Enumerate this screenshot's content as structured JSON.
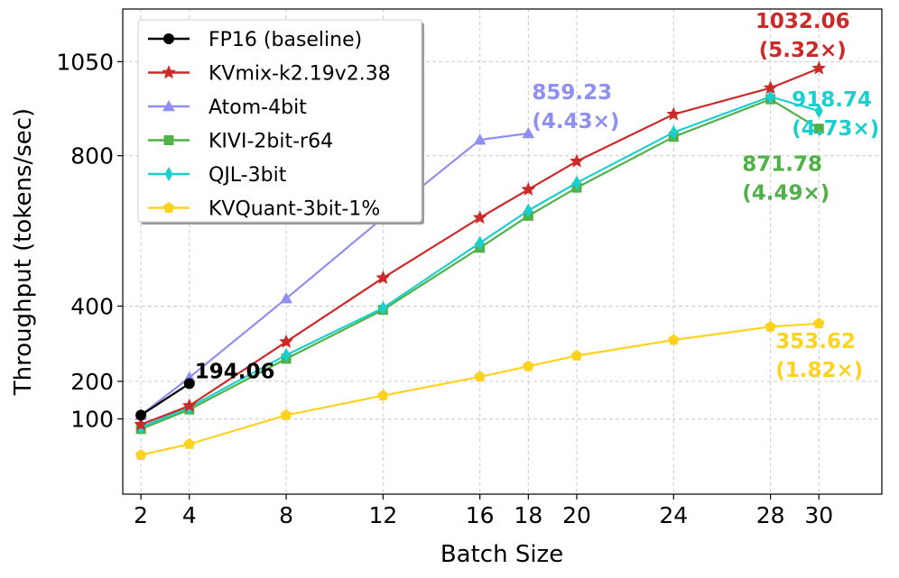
{
  "chart_data": {
    "type": "line",
    "xlabel": "Batch Size",
    "ylabel": "Throughput (tokens/sec)",
    "xlim": [
      1.25,
      32.6
    ],
    "ylim": [
      -100,
      1190
    ],
    "x_ticks": [
      2,
      4,
      8,
      12,
      16,
      18,
      20,
      24,
      28,
      30
    ],
    "y_ticks": [
      100,
      200,
      400,
      800,
      1050
    ],
    "grid": true,
    "legend_position": "top-left",
    "series": [
      {
        "name": "FP16 (baseline)",
        "color": "#000000",
        "marker": "circle",
        "x": [
          2,
          4
        ],
        "y": [
          110,
          194.06
        ]
      },
      {
        "name": "KVmix-k2.19v2.38",
        "color": "#cc2a28",
        "marker": "star",
        "x": [
          2,
          4,
          8,
          12,
          16,
          18,
          20,
          24,
          28,
          30
        ],
        "y": [
          85,
          135,
          305,
          475,
          635,
          710,
          785,
          910,
          980,
          1032.06
        ]
      },
      {
        "name": "Atom-4bit",
        "color": "#8f8ff2",
        "marker": "triangle",
        "x": [
          2,
          4,
          8,
          12,
          16,
          18
        ],
        "y": [
          110,
          210,
          420,
          635,
          842,
          859.23
        ]
      },
      {
        "name": "KIVI-2bit-r64",
        "color": "#50b148",
        "marker": "square",
        "x": [
          2,
          4,
          8,
          12,
          16,
          18,
          20,
          24,
          28,
          30
        ],
        "y": [
          73,
          125,
          260,
          390,
          555,
          640,
          715,
          850,
          950,
          871.78
        ]
      },
      {
        "name": "QJL-3bit",
        "color": "#1ccfcf",
        "marker": "diamond",
        "x": [
          2,
          4,
          8,
          12,
          16,
          18,
          20,
          24,
          28,
          30
        ],
        "y": [
          78,
          131,
          270,
          395,
          568,
          654,
          728,
          862,
          957,
          918.74
        ]
      },
      {
        "name": "KVQuant-3bit-1%",
        "color": "#ffd21f",
        "marker": "pentagon",
        "x": [
          2,
          4,
          8,
          12,
          16,
          18,
          20,
          24,
          28,
          30
        ],
        "y": [
          4,
          33,
          110,
          162,
          212,
          240,
          268,
          310,
          345,
          353.62
        ]
      }
    ],
    "annotations": [
      {
        "series": "FP16 (baseline)",
        "lines": [
          "194.06"
        ],
        "color": "#000000",
        "x": 4,
        "y": 194.06,
        "dx": 6,
        "dy": -6,
        "anchor": "start"
      },
      {
        "series": "Atom-4bit",
        "lines": [
          "859.23",
          "(4.43×)"
        ],
        "color": "#8f8ff2",
        "x": 18,
        "y": 859.23,
        "dx": 4,
        "dy": -38,
        "anchor": "start"
      },
      {
        "series": "KVmix-k2.19v2.38",
        "lines": [
          "1032.06",
          "(5.32×)"
        ],
        "color": "#cc2a28",
        "x": 30,
        "y": 1032.06,
        "dx": -18,
        "dy": -45,
        "anchor": "middle"
      },
      {
        "series": "QJL-3bit",
        "lines": [
          "918.74",
          "(4.73×)"
        ],
        "color": "#1ccfcf",
        "x": 30,
        "y": 918.74,
        "dx": -30,
        "dy": -5,
        "anchor": "start"
      },
      {
        "series": "KIVI-2bit-r64",
        "lines": [
          "871.78",
          "(4.49×)"
        ],
        "color": "#50b148",
        "x": 30,
        "y": 871.78,
        "dx": -85,
        "dy": 47,
        "anchor": "start"
      },
      {
        "series": "KVQuant-3bit-1%",
        "lines": [
          "353.62",
          "(1.82×)"
        ],
        "color": "#ffd21f",
        "x": 30,
        "y": 353.62,
        "dx": -48,
        "dy": 27,
        "anchor": "start"
      }
    ]
  }
}
